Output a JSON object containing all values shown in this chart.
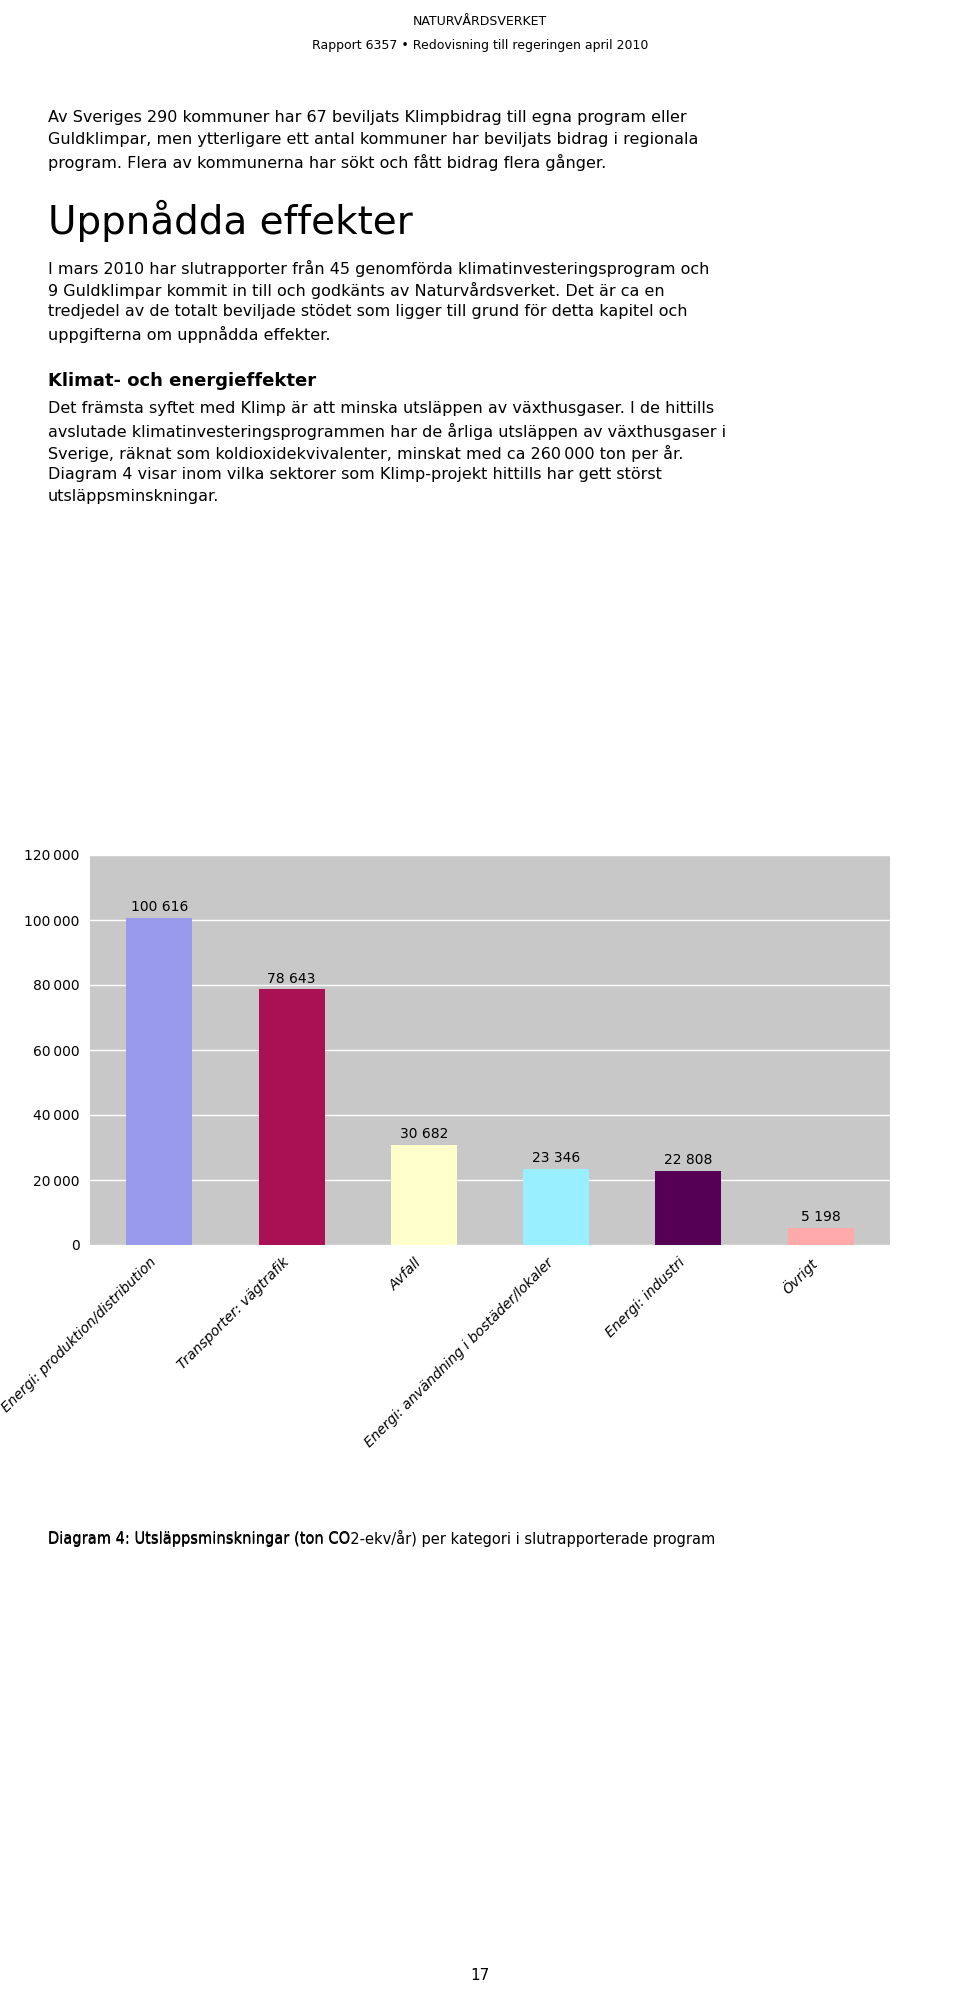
{
  "page_title": "NATURVÅRDSVERKET",
  "page_subtitle": "Rapport 6357 • Redovisning till regeringen april 2010",
  "para1": "Av Sveriges 290 kommuner har 67 beviljats Klimpbidrag till egna program eller\nGuldklimpar, men ytterligare ett antal kommuner har beviljats bidrag i regionala\nprogram. Flera av kommunerna har sökt och fått bidrag flera gånger.",
  "heading1": "Uppnådda effekter",
  "para2": "I mars 2010 har slutrapporter från 45 genomförda klimatinvesteringsprogram och\n9 Guldklimpar kommit in till och godkänts av Naturvårdsverket. Det är ca en\ntredjedel av de totalt beviljade stödet som ligger till grund för detta kapitel och\nuppgifterna om uppnådda effekter.",
  "heading2": "Klimat- och energieffekter",
  "para3": "Det främsta syftet med Klimp är att minska utsläppen av växthusgaser. I de hittills\navslutade klimatinvesteringsprogrammen har de årliga utsläppen av växthusgaser i\nSverige, räknat som koldioxidekvivalenter, minskat med ca 260 000 ton per år.\nDiagram 4 visar inom vilka sektorer som Klimp-projekt hittills har gett störst\nutsläppsminskningar.",
  "chart": {
    "categories": [
      "Energi: produktion/distribution",
      "Transporter: vägtrafik",
      "Avfall",
      "Energi: användning i bostäder/lokaler",
      "Energi: industri",
      "Övrigt"
    ],
    "values": [
      100616,
      78643,
      30682,
      23346,
      22808,
      5198
    ],
    "colors": [
      "#9999ee",
      "#aa1155",
      "#ffffcc",
      "#99eeff",
      "#550055",
      "#ffaaaa"
    ],
    "ylim": [
      0,
      120000
    ],
    "yticks": [
      0,
      20000,
      40000,
      60000,
      80000,
      100000,
      120000
    ],
    "grid_color": "#ffffff",
    "bg_color": "#c8c8c8",
    "value_labels": [
      "100 616",
      "78 643",
      "30 682",
      "23 346",
      "22 808",
      "5 198"
    ],
    "caption_pre": "Diagram 4: Utsläppsminskningar (ton CO",
    "caption_sub": "2",
    "caption_post": "-ekv/år) per kategori i slutrapporterade program"
  },
  "page_number": "17",
  "font_size_body": 11.5,
  "font_size_heading1": 28,
  "font_size_heading2": 13,
  "font_size_caption": 10.5,
  "font_size_header": 9,
  "font_size_ytick": 10,
  "font_size_xtick": 10
}
